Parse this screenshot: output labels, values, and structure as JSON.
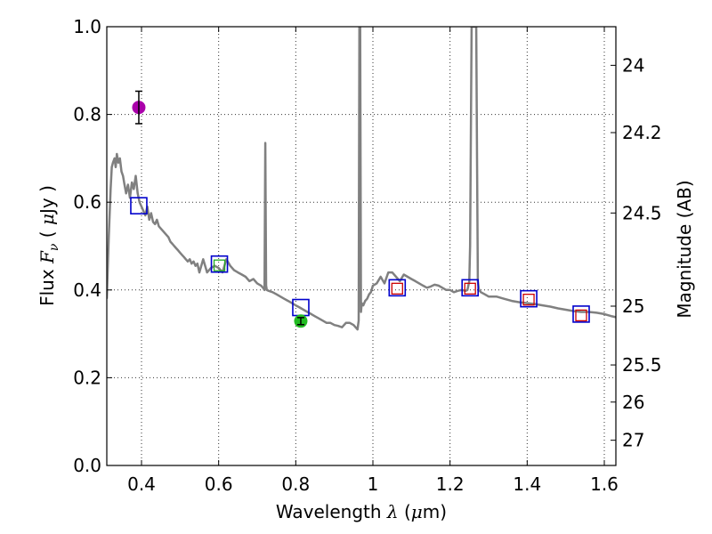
{
  "chart_data": {
    "type": "line",
    "xlabel": "Wavelength",
    "xlabel_symbol": "λ",
    "xlabel_unit_open": " (",
    "xlabel_unit_mu": "μ",
    "xlabel_unit_rest": "m)",
    "ylabel": "Flux",
    "ylabel_symbol": "F",
    "ylabel_sub": "ν",
    "ylabel_unit_open": "( ",
    "ylabel_unit_mu": "μ",
    "ylabel_unit_rest": "Jy )",
    "y2label": "Magnitude (AB)",
    "xlim": [
      0.31,
      1.63
    ],
    "ylim": [
      0.0,
      1.0
    ],
    "grid": true,
    "x_ticks": [
      0.4,
      0.6,
      0.8,
      1.0,
      1.2,
      1.4,
      1.6
    ],
    "x_tick_labels": [
      "0.4",
      "0.6",
      "0.8",
      "1",
      "1.2",
      "1.4",
      "1.6"
    ],
    "y_ticks": [
      0.0,
      0.2,
      0.4,
      0.6,
      0.8,
      1.0
    ],
    "y_tick_labels": [
      "0.0",
      "0.2",
      "0.4",
      "0.6",
      "0.8",
      "1.0"
    ],
    "y2_ticks": [
      {
        "flux": 0.912,
        "label": "24"
      },
      {
        "flux": 0.7586,
        "label": "24.2"
      },
      {
        "flux": 0.5754,
        "label": "24.5"
      },
      {
        "flux": 0.3631,
        "label": "25"
      },
      {
        "flux": 0.2291,
        "label": "25.5"
      },
      {
        "flux": 0.1445,
        "label": "26"
      },
      {
        "flux": 0.0575,
        "label": "27"
      }
    ],
    "series": [
      {
        "name": "SED model spectrum",
        "kind": "line",
        "color": "#808080",
        "x": [
          0.31,
          0.315,
          0.32,
          0.323,
          0.326,
          0.33,
          0.333,
          0.336,
          0.34,
          0.344,
          0.348,
          0.352,
          0.356,
          0.36,
          0.365,
          0.37,
          0.375,
          0.38,
          0.385,
          0.39,
          0.395,
          0.4,
          0.405,
          0.41,
          0.415,
          0.42,
          0.425,
          0.43,
          0.435,
          0.44,
          0.445,
          0.45,
          0.455,
          0.46,
          0.465,
          0.47,
          0.475,
          0.48,
          0.485,
          0.49,
          0.495,
          0.5,
          0.505,
          0.51,
          0.515,
          0.52,
          0.525,
          0.53,
          0.535,
          0.54,
          0.545,
          0.55,
          0.56,
          0.57,
          0.58,
          0.59,
          0.6,
          0.61,
          0.62,
          0.63,
          0.64,
          0.65,
          0.66,
          0.67,
          0.68,
          0.69,
          0.7,
          0.71,
          0.715,
          0.719,
          0.721,
          0.723,
          0.725,
          0.73,
          0.74,
          0.75,
          0.76,
          0.77,
          0.78,
          0.79,
          0.8,
          0.81,
          0.82,
          0.83,
          0.84,
          0.85,
          0.86,
          0.87,
          0.88,
          0.89,
          0.9,
          0.91,
          0.92,
          0.93,
          0.94,
          0.95,
          0.955,
          0.96,
          0.963,
          0.965,
          0.967,
          0.969,
          0.971,
          0.975,
          0.98,
          0.985,
          0.99,
          0.995,
          1.0,
          1.01,
          1.02,
          1.03,
          1.04,
          1.05,
          1.06,
          1.07,
          1.08,
          1.09,
          1.1,
          1.11,
          1.12,
          1.13,
          1.14,
          1.15,
          1.16,
          1.17,
          1.18,
          1.19,
          1.2,
          1.21,
          1.22,
          1.23,
          1.24,
          1.245,
          1.25,
          1.252,
          1.256,
          1.262,
          1.266,
          1.268,
          1.27,
          1.272,
          1.275,
          1.28,
          1.29,
          1.3,
          1.32,
          1.34,
          1.36,
          1.38,
          1.4,
          1.42,
          1.44,
          1.46,
          1.48,
          1.5,
          1.52,
          1.54,
          1.56,
          1.58,
          1.6,
          1.62,
          1.63
        ],
        "y": [
          0.38,
          0.52,
          0.63,
          0.68,
          0.69,
          0.7,
          0.68,
          0.71,
          0.69,
          0.7,
          0.67,
          0.66,
          0.64,
          0.62,
          0.64,
          0.61,
          0.645,
          0.63,
          0.66,
          0.62,
          0.6,
          0.59,
          0.58,
          0.57,
          0.59,
          0.56,
          0.575,
          0.555,
          0.55,
          0.56,
          0.545,
          0.54,
          0.535,
          0.53,
          0.525,
          0.52,
          0.51,
          0.505,
          0.5,
          0.495,
          0.49,
          0.485,
          0.48,
          0.475,
          0.47,
          0.465,
          0.47,
          0.46,
          0.465,
          0.455,
          0.46,
          0.44,
          0.47,
          0.44,
          0.45,
          0.455,
          0.45,
          0.44,
          0.47,
          0.455,
          0.445,
          0.44,
          0.435,
          0.43,
          0.42,
          0.425,
          0.415,
          0.41,
          0.405,
          0.4,
          0.735,
          0.41,
          0.4,
          0.398,
          0.395,
          0.39,
          0.385,
          0.38,
          0.375,
          0.37,
          0.365,
          0.36,
          0.355,
          0.35,
          0.345,
          0.34,
          0.335,
          0.33,
          0.325,
          0.325,
          0.32,
          0.318,
          0.315,
          0.325,
          0.325,
          0.32,
          0.315,
          0.31,
          0.33,
          1.0,
          1.0,
          0.35,
          0.37,
          0.365,
          0.375,
          0.38,
          0.39,
          0.395,
          0.41,
          0.415,
          0.43,
          0.415,
          0.44,
          0.44,
          0.43,
          0.42,
          0.435,
          0.43,
          0.425,
          0.42,
          0.415,
          0.41,
          0.405,
          0.408,
          0.412,
          0.41,
          0.405,
          0.4,
          0.4,
          0.395,
          0.398,
          0.4,
          0.398,
          0.4,
          0.42,
          0.5,
          1.0,
          1.0,
          1.0,
          1.0,
          0.7,
          0.42,
          0.4,
          0.395,
          0.39,
          0.385,
          0.385,
          0.38,
          0.375,
          0.372,
          0.37,
          0.368,
          0.365,
          0.362,
          0.358,
          0.355,
          0.352,
          0.35,
          0.35,
          0.348,
          0.345,
          0.34,
          0.338
        ]
      },
      {
        "name": "model synthetic photometry",
        "kind": "open-square",
        "color": "#0000cc",
        "x": [
          0.393,
          0.602,
          0.813,
          1.063,
          1.252,
          1.404,
          1.54
        ],
        "y": [
          0.592,
          0.459,
          0.36,
          0.405,
          0.405,
          0.38,
          0.345
        ]
      },
      {
        "name": "observed flux (red)",
        "kind": "small-square",
        "color": "#cc0000",
        "x": [
          1.063,
          1.252,
          1.404,
          1.54
        ],
        "y": [
          0.403,
          0.403,
          0.378,
          0.342
        ]
      },
      {
        "name": "observed flux (green)",
        "kind": "small-square",
        "color": "#22aa22",
        "x": [
          0.602
        ],
        "y": [
          0.456
        ]
      },
      {
        "name": "detection (magenta)",
        "kind": "circle-errorbar",
        "color": "#aa00aa",
        "x": [
          0.393
        ],
        "y": [
          0.816
        ],
        "yerr": [
          0.037
        ]
      },
      {
        "name": "detection (green)",
        "kind": "circle-errorbar",
        "color": "#22bb22",
        "x": [
          0.813
        ],
        "y": [
          0.329
        ],
        "yerr": [
          0.008
        ]
      }
    ]
  }
}
